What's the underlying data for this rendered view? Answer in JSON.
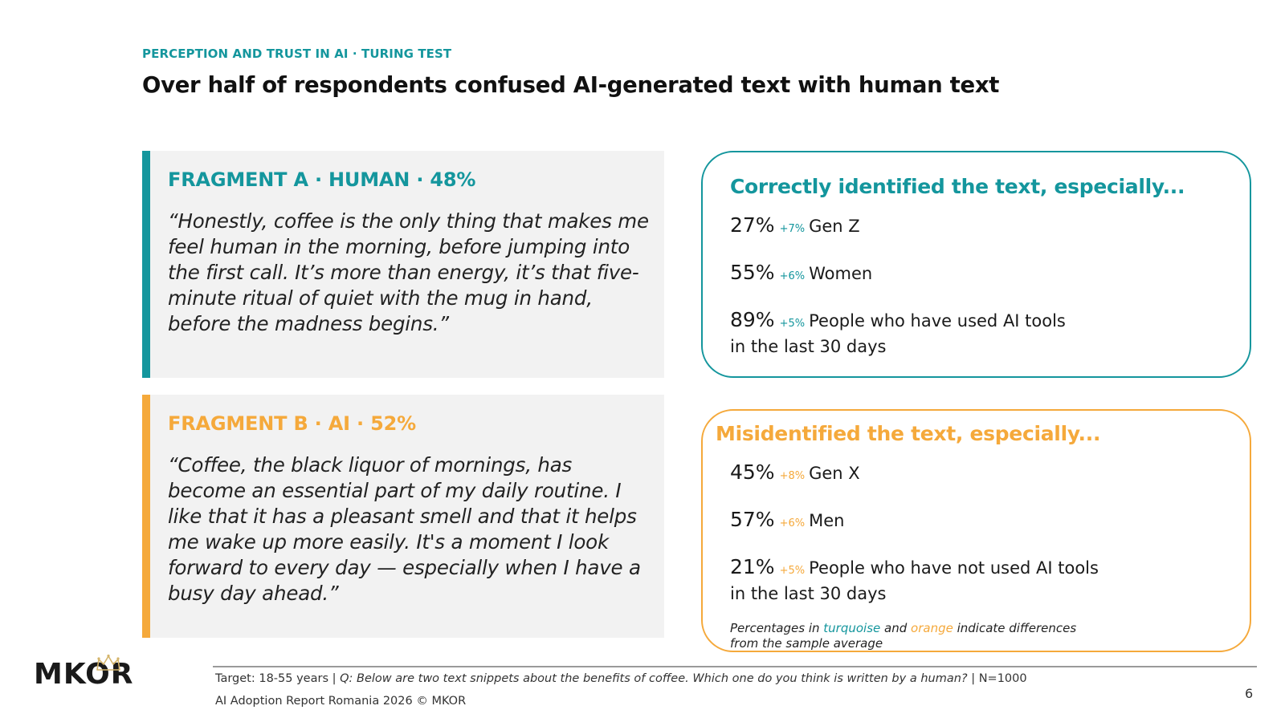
{
  "header": {
    "kicker": "PERCEPTION AND TRUST IN AI · TURING TEST",
    "title": "Over half of respondents confused AI-generated text with human text"
  },
  "fragments": [
    {
      "heading": "FRAGMENT A · HUMAN · 48%",
      "quote": "“Honestly, coffee is the only thing that makes me feel human in the morning, before jumping into the first call. It’s more than energy, it’s that five-minute ritual of quiet with the mug in hand, before the madness begins.”",
      "accent": "#14969d"
    },
    {
      "heading": "FRAGMENT B · AI · 52%",
      "quote": "“Coffee, the black liquor of mornings, has become an essential part of my daily routine. I like that it has a pleasant smell and that it helps me wake up more easily. It's a moment I look forward to every day — especially when I have a busy day ahead.”",
      "accent": "#f5a93b"
    }
  ],
  "correct": {
    "title": "Correctly identified the text, especially...",
    "stats": [
      {
        "pct": "27%",
        "diff": "+7%",
        "label": "Gen Z",
        "label2": ""
      },
      {
        "pct": "55%",
        "diff": "+6%",
        "label": "Women",
        "label2": ""
      },
      {
        "pct": "89%",
        "diff": "+5%",
        "label": "People who have used AI tools",
        "label2": "in the last 30 days"
      }
    ]
  },
  "misidentified": {
    "title": "Misidentified the text, especially...",
    "stats": [
      {
        "pct": "45%",
        "diff": "+8%",
        "label": "Gen X",
        "label2": ""
      },
      {
        "pct": "57%",
        "diff": "+6%",
        "label": "Men",
        "label2": ""
      },
      {
        "pct": "21%",
        "diff": "+5%",
        "label": "People who have not used AI tools",
        "label2": "in the last 30 days"
      }
    ],
    "note": {
      "pre": "Percentages in ",
      "turquoise": "turquoise",
      "mid": " and ",
      "orange": "orange",
      "post": " indicate differences from the sample average"
    }
  },
  "footer": {
    "logo": "MKOR",
    "target": "Target: 18-55 years | ",
    "question": "Q: Below are two text snippets about the benefits of coffee. Which one do you think is written by a human?",
    "sample": " | N=1000",
    "report": "AI Adoption Report Romania 2026 © MKOR",
    "page": "6"
  },
  "colors": {
    "turquoise": "#14969d",
    "orange": "#f5a93b",
    "panel": "#f2f2f2"
  }
}
